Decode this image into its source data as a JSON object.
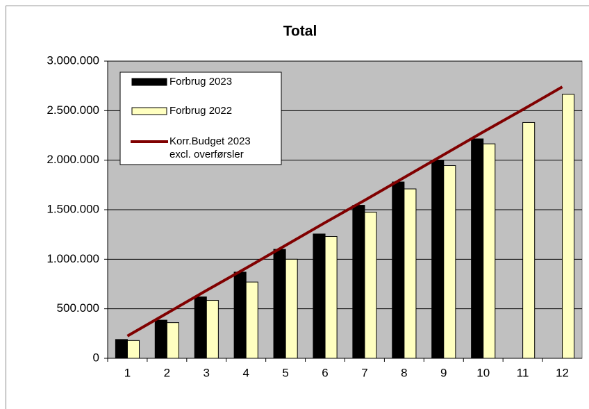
{
  "chart_data": {
    "type": "bar",
    "title": "Total",
    "categories": [
      "1",
      "2",
      "3",
      "4",
      "5",
      "6",
      "7",
      "8",
      "9",
      "10",
      "11",
      "12"
    ],
    "series": [
      {
        "name": "Forbrug 2023",
        "type": "bar",
        "color": "#000000",
        "values": [
          190000,
          385000,
          620000,
          870000,
          1100000,
          1255000,
          1545000,
          1780000,
          2000000,
          2215000,
          null,
          null
        ]
      },
      {
        "name": "Forbrug 2022",
        "type": "bar",
        "color": "#ffffc0",
        "values": [
          180000,
          360000,
          585000,
          770000,
          1000000,
          1230000,
          1475000,
          1710000,
          1945000,
          2165000,
          2380000,
          2665000
        ]
      },
      {
        "name": "Korr.Budget 2023\nexcl. overførsler",
        "type": "line",
        "color": "#800000",
        "values": [
          225000,
          455000,
          685000,
          910000,
          1140000,
          1370000,
          1595000,
          1825000,
          2055000,
          2285000,
          2510000,
          2740000
        ]
      }
    ],
    "ylim": [
      0,
      3000000
    ],
    "yticks": [
      {
        "value": 0,
        "label": "0"
      },
      {
        "value": 500000,
        "label": "500.000"
      },
      {
        "value": 1000000,
        "label": "1.000.000"
      },
      {
        "value": 1500000,
        "label": "1.500.000"
      },
      {
        "value": 2000000,
        "label": "2.000.000"
      },
      {
        "value": 2500000,
        "label": "2.500.000"
      },
      {
        "value": 3000000,
        "label": "3.000.000"
      }
    ],
    "grid": true,
    "legend": "top-left"
  }
}
